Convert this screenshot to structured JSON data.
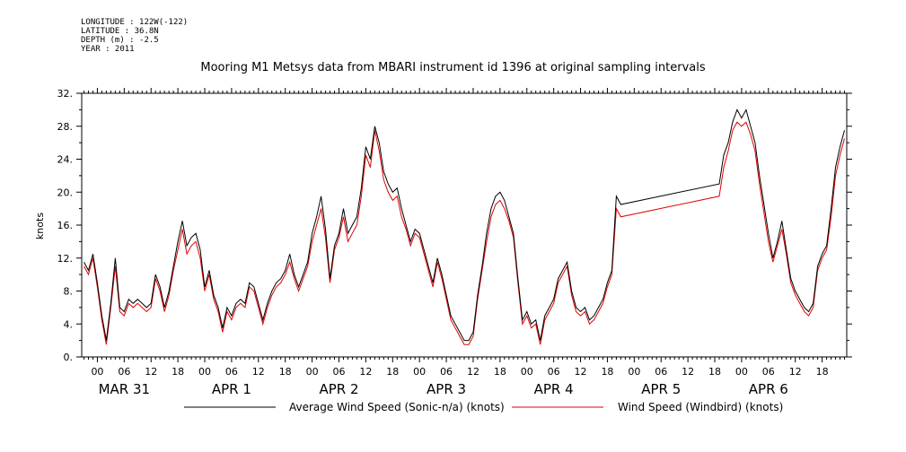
{
  "meta": {
    "longitude": "LONGITUDE : 122W(-122)",
    "latitude": "LATITUDE : 36.8N",
    "depth": "DEPTH (m) : -2.5",
    "year": "YEAR : 2011"
  },
  "colors": {
    "series1": "#000000",
    "series2": "#e00000"
  },
  "chart_data": {
    "type": "line",
    "title": "Mooring M1 Metsys data from MBARI instrument id 1396 at original sampling intervals",
    "xlabel": "",
    "ylabel": "knots",
    "ylim": [
      0,
      32
    ],
    "yticks": [
      "0.",
      "4.",
      "8.",
      "12.",
      "16.",
      "20.",
      "24.",
      "28.",
      "32."
    ],
    "xlim_hours": [
      -3.5,
      167.5
    ],
    "hour_tick_labels": [
      "00",
      "06",
      "12",
      "18",
      "00",
      "06",
      "12",
      "18",
      "00",
      "06",
      "12",
      "18",
      "00",
      "06",
      "12",
      "18",
      "00",
      "06",
      "12",
      "18",
      "00",
      "06",
      "12",
      "18",
      "00",
      "06",
      "12",
      "18"
    ],
    "day_labels": [
      "MAR 31",
      "APR  1",
      "APR  2",
      "APR  3",
      "APR  4",
      "APR  5",
      "APR  6"
    ],
    "legend": [
      "Average Wind Speed (Sonic-n/a) (knots)",
      "Wind Speed (Windbird) (knots)"
    ],
    "series": [
      {
        "name": "Average Wind Speed (Sonic-n/a) (knots)",
        "x_hours": [
          -3,
          -2,
          -1,
          0,
          1,
          2,
          3,
          4,
          5,
          6,
          7,
          8,
          9,
          10,
          11,
          12,
          13,
          14,
          15,
          16,
          17,
          18,
          19,
          20,
          21,
          22,
          23,
          24,
          25,
          26,
          27,
          28,
          29,
          30,
          31,
          32,
          33,
          34,
          35,
          36,
          37,
          38,
          39,
          40,
          41,
          42,
          43,
          44,
          45,
          46,
          47,
          48,
          49,
          50,
          51,
          52,
          53,
          54,
          55,
          56,
          57,
          58,
          59,
          60,
          61,
          62,
          63,
          64,
          65,
          66,
          67,
          68,
          69,
          70,
          71,
          72,
          73,
          74,
          75,
          76,
          77,
          78,
          79,
          80,
          81,
          82,
          83,
          84,
          85,
          86,
          87,
          88,
          89,
          90,
          91,
          92,
          93,
          94,
          95,
          96,
          97,
          98,
          99,
          100,
          101,
          102,
          103,
          104,
          105,
          106,
          107,
          108,
          109,
          110,
          111,
          112,
          113,
          114,
          115,
          116,
          117,
          139,
          140,
          141,
          142,
          143,
          144,
          145,
          146,
          147,
          148,
          149,
          150,
          151,
          152,
          153,
          154,
          155,
          156,
          157,
          158,
          159,
          160,
          161,
          162,
          163,
          164,
          165,
          166,
          167
        ],
        "values": [
          11.5,
          10.5,
          12.5,
          9.0,
          5.0,
          2.0,
          6.5,
          12.0,
          6.0,
          5.5,
          7.0,
          6.5,
          7.0,
          6.5,
          6.0,
          6.5,
          10.0,
          8.5,
          6.0,
          8.0,
          11.0,
          14.0,
          16.5,
          13.5,
          14.5,
          15.0,
          13.0,
          8.5,
          10.5,
          7.5,
          6.0,
          3.5,
          6.0,
          5.0,
          6.5,
          7.0,
          6.5,
          9.0,
          8.5,
          6.5,
          4.5,
          6.5,
          8.0,
          9.0,
          9.5,
          10.5,
          12.5,
          10.0,
          8.5,
          10.0,
          11.5,
          15.0,
          17.0,
          19.5,
          15.5,
          9.5,
          13.5,
          15.0,
          18.0,
          15.0,
          16.0,
          17.0,
          20.5,
          25.5,
          24.0,
          28.0,
          26.0,
          22.5,
          21.0,
          20.0,
          20.5,
          18.0,
          16.0,
          14.0,
          15.5,
          15.0,
          13.0,
          11.0,
          9.0,
          12.0,
          10.0,
          7.5,
          5.0,
          4.0,
          3.0,
          2.0,
          2.0,
          3.0,
          7.5,
          11.0,
          15.0,
          18.0,
          19.5,
          20.0,
          19.0,
          17.0,
          15.0,
          9.5,
          4.5,
          5.5,
          4.0,
          4.5,
          2.0,
          5.0,
          6.0,
          7.0,
          9.5,
          10.5,
          11.5,
          8.0,
          6.0,
          5.5,
          6.0,
          4.5,
          5.0,
          6.0,
          7.0,
          9.0,
          10.5,
          19.5,
          18.5,
          21.0,
          24.5,
          26.0,
          28.5,
          30.0,
          29.0,
          30.0,
          28.0,
          26.0,
          22.0,
          18.5,
          15.0,
          12.0,
          14.0,
          16.5,
          13.0,
          9.5,
          8.0,
          7.0,
          6.0,
          5.5,
          6.5,
          11.0,
          12.5,
          13.5,
          18.0,
          23.0,
          25.5,
          27.5
        ]
      },
      {
        "name": "Wind Speed (Windbird) (knots)",
        "x_hours": [
          -3,
          -2,
          -1,
          0,
          1,
          2,
          3,
          4,
          5,
          6,
          7,
          8,
          9,
          10,
          11,
          12,
          13,
          14,
          15,
          16,
          17,
          18,
          19,
          20,
          21,
          22,
          23,
          24,
          25,
          26,
          27,
          28,
          29,
          30,
          31,
          32,
          33,
          34,
          35,
          36,
          37,
          38,
          39,
          40,
          41,
          42,
          43,
          44,
          45,
          46,
          47,
          48,
          49,
          50,
          51,
          52,
          53,
          54,
          55,
          56,
          57,
          58,
          59,
          60,
          61,
          62,
          63,
          64,
          65,
          66,
          67,
          68,
          69,
          70,
          71,
          72,
          73,
          74,
          75,
          76,
          77,
          78,
          79,
          80,
          81,
          82,
          83,
          84,
          85,
          86,
          87,
          88,
          89,
          90,
          91,
          92,
          93,
          94,
          95,
          96,
          97,
          98,
          99,
          100,
          101,
          102,
          103,
          104,
          105,
          106,
          107,
          108,
          109,
          110,
          111,
          112,
          113,
          114,
          115,
          116,
          117,
          139,
          140,
          141,
          142,
          143,
          144,
          145,
          146,
          147,
          148,
          149,
          150,
          151,
          152,
          153,
          154,
          155,
          156,
          157,
          158,
          159,
          160,
          161,
          162,
          163,
          164,
          165,
          166,
          167
        ],
        "values": [
          11.0,
          10.0,
          12.0,
          8.5,
          4.5,
          1.5,
          6.0,
          11.0,
          5.5,
          5.0,
          6.5,
          6.0,
          6.5,
          6.0,
          5.5,
          6.0,
          9.5,
          8.0,
          5.5,
          7.5,
          10.5,
          13.0,
          15.5,
          12.5,
          13.5,
          14.0,
          12.0,
          8.0,
          10.0,
          7.0,
          5.5,
          3.0,
          5.5,
          4.5,
          6.0,
          6.5,
          6.0,
          8.5,
          8.0,
          6.0,
          4.0,
          6.0,
          7.5,
          8.5,
          9.0,
          10.0,
          11.5,
          9.5,
          8.0,
          9.5,
          11.0,
          14.0,
          16.0,
          18.0,
          14.5,
          9.0,
          13.0,
          14.5,
          17.0,
          14.0,
          15.0,
          16.0,
          19.5,
          24.5,
          23.0,
          27.5,
          25.0,
          21.5,
          20.0,
          19.0,
          19.5,
          17.0,
          15.5,
          13.5,
          15.0,
          14.5,
          12.5,
          10.5,
          8.5,
          11.5,
          9.5,
          7.0,
          4.5,
          3.5,
          2.5,
          1.5,
          1.5,
          2.5,
          7.0,
          10.5,
          14.0,
          17.0,
          18.5,
          19.0,
          18.0,
          16.5,
          14.5,
          9.0,
          4.0,
          5.0,
          3.5,
          4.0,
          1.5,
          4.5,
          5.5,
          6.5,
          9.0,
          10.0,
          11.0,
          7.5,
          5.5,
          5.0,
          5.5,
          4.0,
          4.5,
          5.5,
          6.5,
          8.5,
          10.0,
          18.0,
          17.0,
          19.5,
          23.0,
          25.0,
          27.5,
          28.5,
          28.0,
          28.5,
          27.0,
          25.0,
          21.0,
          17.5,
          14.0,
          11.5,
          13.5,
          15.5,
          12.5,
          9.0,
          7.5,
          6.5,
          5.5,
          5.0,
          6.0,
          10.5,
          12.0,
          13.0,
          17.0,
          22.0,
          24.5,
          26.5
        ]
      }
    ]
  }
}
